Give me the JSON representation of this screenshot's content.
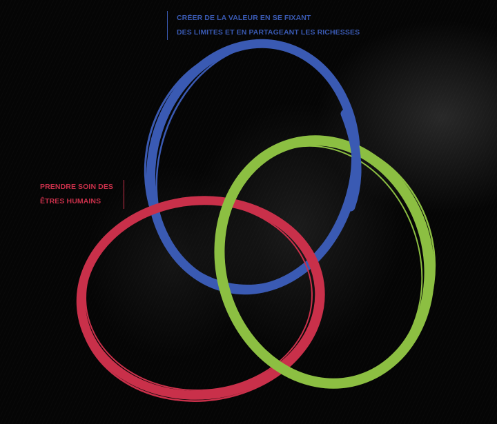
{
  "colors": {
    "background": "#050505",
    "blue": "#3a5ab3",
    "green": "#8cbf42",
    "red": "#c9304a"
  },
  "labels": {
    "top": {
      "line1": "CRÉER DE LA VALEUR EN SE FIXANT",
      "line2": "DES LIMITES ET EN PARTAGEANT LES RICHESSES"
    },
    "left": {
      "line1": "PRENDRE SOIN DES",
      "line2": "ÊTRES HUMAINS"
    }
  }
}
